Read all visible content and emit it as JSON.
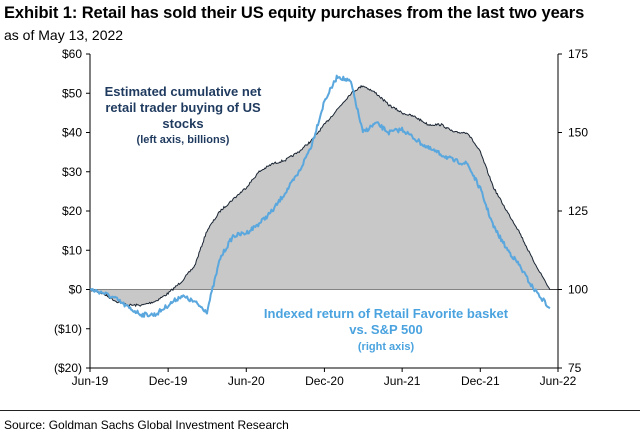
{
  "header": {
    "title": "Exhibit 1: Retail has sold their US equity purchases from the last two years",
    "subtitle": "as of May 13, 2022"
  },
  "footer": {
    "source": "Source: Goldman Sachs Global Investment Research"
  },
  "colors": {
    "area_fill": "#c8c8c8",
    "area_line": "#1a2533",
    "index_line": "#5aa7de",
    "annotation_dark": "#1f3a5f",
    "annotation_light": "#4aa3df"
  },
  "chart_data": {
    "type": "line",
    "title": "Exhibit 1: Retail has sold their US equity purchases from the last two years",
    "x_ticks": [
      "Jun-19",
      "Dec-19",
      "Jun-20",
      "Dec-20",
      "Jun-21",
      "Dec-21",
      "Jun-22"
    ],
    "y_left": {
      "ticks": [
        "$60",
        "$50",
        "$40",
        "$30",
        "$20",
        "$10",
        "$0",
        "($10)",
        "($20)"
      ],
      "tick_values": [
        60,
        50,
        40,
        30,
        20,
        10,
        0,
        -10,
        -20
      ],
      "range": [
        -20,
        60
      ],
      "unit": "billions"
    },
    "y_right": {
      "ticks": [
        "175",
        "150",
        "125",
        "100",
        "75"
      ],
      "tick_values": [
        175,
        150,
        125,
        100,
        75
      ],
      "range": [
        75,
        175
      ]
    },
    "grid": false,
    "annotations": {
      "left_series": [
        "Estimated cumulative net",
        "retail trader buying of US",
        "stocks",
        "(left axis, billions)"
      ],
      "right_series": [
        "Indexed return of Retail Favorite basket",
        "vs. S&P 500",
        "(right axis)"
      ]
    },
    "series": [
      {
        "name": "Estimated cumulative net retail trader buying of US stocks (left axis, billions)",
        "axis": "left",
        "style": "area",
        "x": [
          "2019-06",
          "2019-07",
          "2019-08",
          "2019-09",
          "2019-10",
          "2019-11",
          "2019-12",
          "2020-01",
          "2020-02",
          "2020-03",
          "2020-04",
          "2020-05",
          "2020-06",
          "2020-07",
          "2020-08",
          "2020-09",
          "2020-10",
          "2020-11",
          "2020-12",
          "2021-01",
          "2021-02",
          "2021-03",
          "2021-04",
          "2021-05",
          "2021-06",
          "2021-07",
          "2021-08",
          "2021-09",
          "2021-10",
          "2021-11",
          "2021-12",
          "2022-01",
          "2022-02",
          "2022-03",
          "2022-04",
          "2022-05-13"
        ],
        "values": [
          0,
          -1,
          -3,
          -4,
          -4,
          -3,
          -1,
          2,
          6,
          15,
          20,
          23,
          26,
          30,
          32,
          33,
          35,
          38,
          42,
          46,
          50,
          52,
          50,
          47,
          45,
          44,
          42,
          42,
          40,
          40,
          35,
          26,
          20,
          15,
          8,
          0
        ]
      },
      {
        "name": "Indexed return of Retail Favorite basket vs. S&P 500 (right axis)",
        "axis": "right",
        "style": "line",
        "x": [
          "2019-06",
          "2019-07",
          "2019-08",
          "2019-09",
          "2019-10",
          "2019-11",
          "2019-12",
          "2020-01",
          "2020-02",
          "2020-03",
          "2020-04",
          "2020-05",
          "2020-06",
          "2020-07",
          "2020-08",
          "2020-09",
          "2020-10",
          "2020-11",
          "2020-12",
          "2021-01",
          "2021-02",
          "2021-03",
          "2021-04",
          "2021-05",
          "2021-06",
          "2021-07",
          "2021-08",
          "2021-09",
          "2021-10",
          "2021-11",
          "2021-12",
          "2022-01",
          "2022-02",
          "2022-03",
          "2022-04",
          "2022-05-13"
        ],
        "values": [
          100,
          99,
          97,
          94,
          92,
          92,
          95,
          98,
          96,
          93,
          110,
          117,
          118,
          121,
          125,
          131,
          137,
          146,
          160,
          168,
          166,
          150,
          153,
          150,
          151,
          148,
          145,
          143,
          141,
          140,
          132,
          120,
          113,
          108,
          101,
          94
        ]
      }
    ]
  }
}
